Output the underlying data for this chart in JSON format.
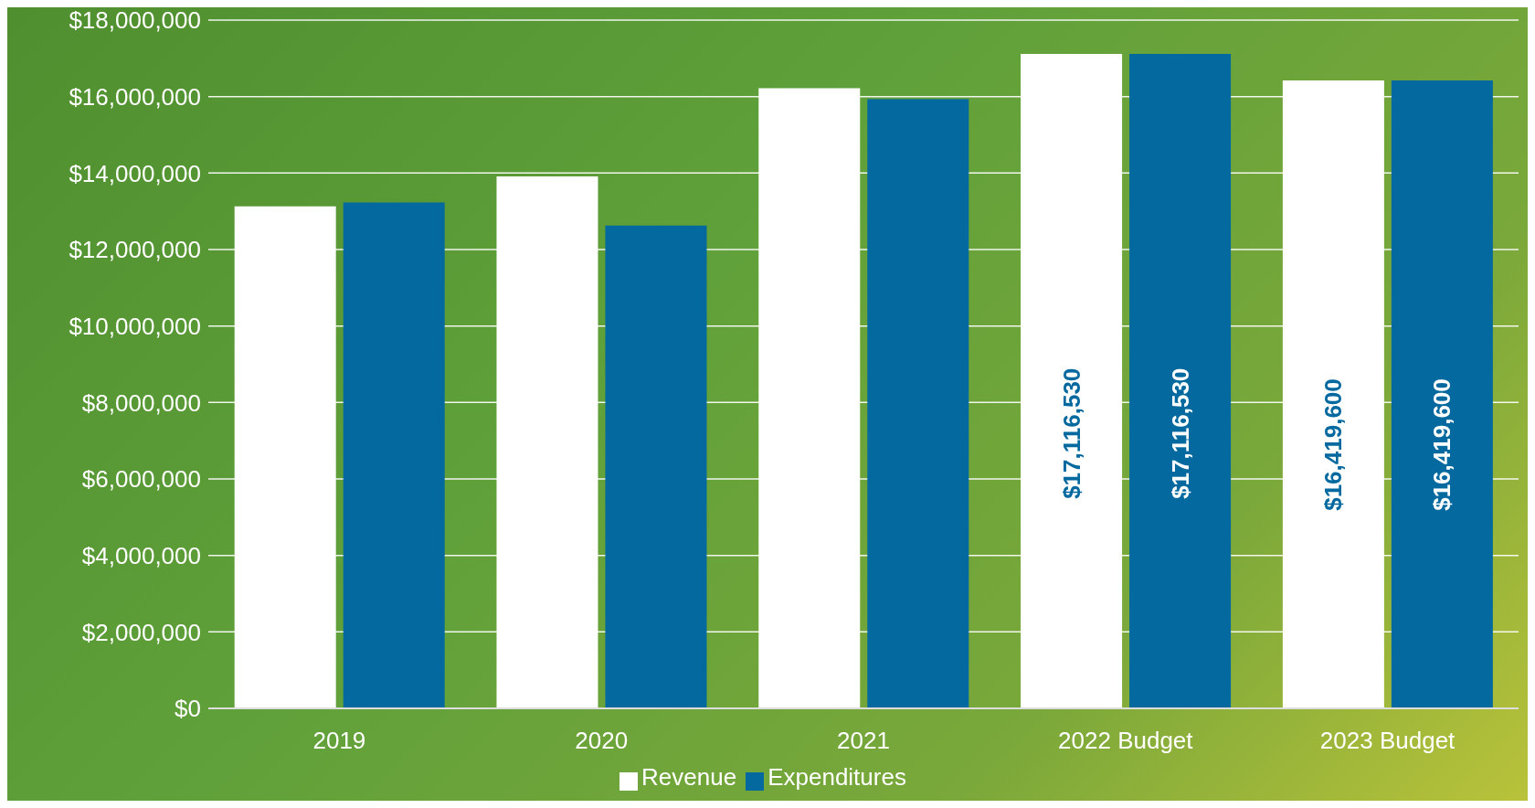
{
  "chart_data": {
    "type": "bar",
    "categories": [
      "2019",
      "2020",
      "2021",
      "2022 Budget",
      "2023  Budget"
    ],
    "series": [
      {
        "name": "Revenue",
        "color": "#ffffff",
        "values": [
          13130000,
          13910000,
          16220000,
          17116530,
          16419600
        ],
        "value_labels": [
          null,
          null,
          null,
          "$17,116,530",
          "$16,419,600"
        ]
      },
      {
        "name": "Expenditures",
        "color": "#04699e",
        "values": [
          13230000,
          12630000,
          15930000,
          17116530,
          16419600
        ],
        "value_labels": [
          null,
          null,
          null,
          "$17,116,530",
          "$16,419,600"
        ]
      }
    ],
    "ylim": [
      0,
      18000000
    ],
    "yticks": [
      {
        "value": 0,
        "label": "$0"
      },
      {
        "value": 2000000,
        "label": "$2,000,000"
      },
      {
        "value": 4000000,
        "label": "$4,000,000"
      },
      {
        "value": 6000000,
        "label": "$6,000,000"
      },
      {
        "value": 8000000,
        "label": "$8,000,000"
      },
      {
        "value": 10000000,
        "label": "$10,000,000"
      },
      {
        "value": 12000000,
        "label": "$12,000,000"
      },
      {
        "value": 14000000,
        "label": "$14,000,000"
      },
      {
        "value": 16000000,
        "label": "$16,000,000"
      },
      {
        "value": 18000000,
        "label": "$18,000,000"
      }
    ],
    "grid": "y",
    "legend": "bottom"
  }
}
